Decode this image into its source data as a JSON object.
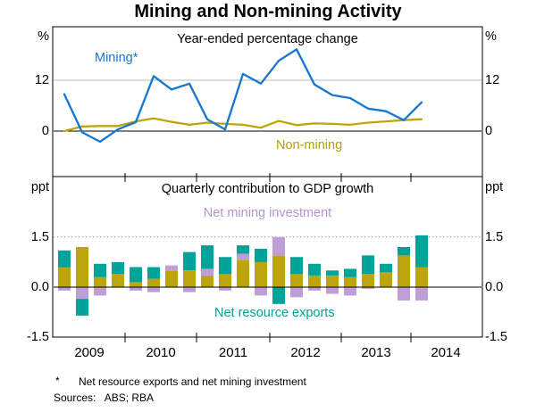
{
  "title": "Mining and Non-mining Activity",
  "panels": {
    "top": {
      "subtitle": "Year-ended percentage change",
      "mining_label": "Mining*",
      "non_mining_label": "Non-mining"
    },
    "bottom": {
      "subtitle": "Quarterly contribution to GDP growth",
      "mining_inv_label": "Net mining investment",
      "resource_exports_label": "Net resource exports"
    }
  },
  "axes": {
    "pct": "%",
    "t12": "12",
    "t0": "0",
    "ppt": "ppt",
    "t15": "1.5",
    "t00": "0.0",
    "tn15": "-1.5"
  },
  "x_axis": {
    "years": [
      "2009",
      "2010",
      "2011",
      "2012",
      "2013",
      "2014"
    ]
  },
  "footnote": {
    "marker": "*",
    "text": "Net resource exports and net mining investment"
  },
  "sources": "Sources:   ABS; RBA",
  "colors": {
    "mining_line": "#1478d2",
    "non_mining": "#bda50e",
    "net_mining_investment": "#bf9ed8",
    "net_resource_exports": "#00a398",
    "grid": "#b8b8b8",
    "axis": "#000000"
  },
  "chart_data": [
    {
      "type": "line",
      "panel": "top",
      "title": "Year-ended percentage change",
      "ylabel": "%",
      "ylim": [
        -10.7,
        24.6
      ],
      "gridlines": [
        12
      ],
      "zero_line": true,
      "x": [
        "2009 Q1",
        "2009 Q2",
        "2009 Q3",
        "2009 Q4",
        "2010 Q1",
        "2010 Q2",
        "2010 Q3",
        "2010 Q4",
        "2011 Q1",
        "2011 Q2",
        "2011 Q3",
        "2011 Q4",
        "2012 Q1",
        "2012 Q2",
        "2012 Q3",
        "2012 Q4",
        "2013 Q1",
        "2013 Q2",
        "2013 Q3",
        "2013 Q4",
        "2014 Q1"
      ],
      "series": [
        {
          "name": "Mining*",
          "key": "mining_line",
          "values": [
            8.7,
            -0.3,
            -2.5,
            0.4,
            2.1,
            13.0,
            9.8,
            11.2,
            2.8,
            0.4,
            13.5,
            11.2,
            16.6,
            19.3,
            11.0,
            8.5,
            7.8,
            5.3,
            4.7,
            2.6,
            6.8
          ]
        },
        {
          "name": "Non-mining",
          "key": "non_mining",
          "values": [
            0.0,
            1.1,
            1.2,
            1.2,
            2.3,
            3.0,
            2.2,
            1.5,
            2.0,
            1.7,
            1.5,
            0.8,
            2.4,
            1.4,
            1.8,
            1.7,
            1.5,
            2.0,
            2.3,
            2.6,
            2.8
          ]
        }
      ]
    },
    {
      "type": "bar",
      "subtype": "stacked",
      "panel": "bottom",
      "title": "Quarterly contribution to GDP growth",
      "ylabel": "ppt",
      "ylim": [
        -1.5,
        3.3
      ],
      "gridlines": [
        1.5
      ],
      "zero_line": true,
      "x": [
        "2009 Q1",
        "2009 Q2",
        "2009 Q3",
        "2009 Q4",
        "2010 Q1",
        "2010 Q2",
        "2010 Q3",
        "2010 Q4",
        "2011 Q1",
        "2011 Q2",
        "2011 Q3",
        "2011 Q4",
        "2012 Q1",
        "2012 Q2",
        "2012 Q3",
        "2012 Q4",
        "2013 Q1",
        "2013 Q2",
        "2013 Q3",
        "2013 Q4",
        "2014 Q1"
      ],
      "series": [
        {
          "name": "Non-mining",
          "key": "non_mining",
          "values": [
            0.6,
            1.2,
            0.3,
            0.4,
            0.15,
            0.25,
            0.5,
            0.5,
            0.35,
            0.4,
            0.8,
            0.75,
            0.95,
            0.4,
            0.35,
            0.35,
            0.3,
            0.4,
            0.45,
            0.95,
            0.6
          ]
        },
        {
          "name": "Net mining investment",
          "key": "net_mining_investment",
          "values": [
            -0.1,
            -0.35,
            -0.25,
            0.0,
            -0.1,
            -0.15,
            0.15,
            -0.15,
            0.2,
            -0.1,
            0.2,
            -0.25,
            0.55,
            -0.3,
            -0.1,
            -0.2,
            -0.25,
            -0.05,
            0.0,
            -0.4,
            -0.4
          ]
        },
        {
          "name": "Net resource exports",
          "key": "net_resource_exports",
          "values": [
            0.5,
            -0.5,
            0.4,
            0.35,
            0.45,
            0.35,
            0.0,
            0.55,
            0.7,
            0.5,
            0.25,
            0.4,
            -0.5,
            0.5,
            0.35,
            0.15,
            0.25,
            0.55,
            0.25,
            0.25,
            0.95
          ]
        }
      ]
    }
  ]
}
